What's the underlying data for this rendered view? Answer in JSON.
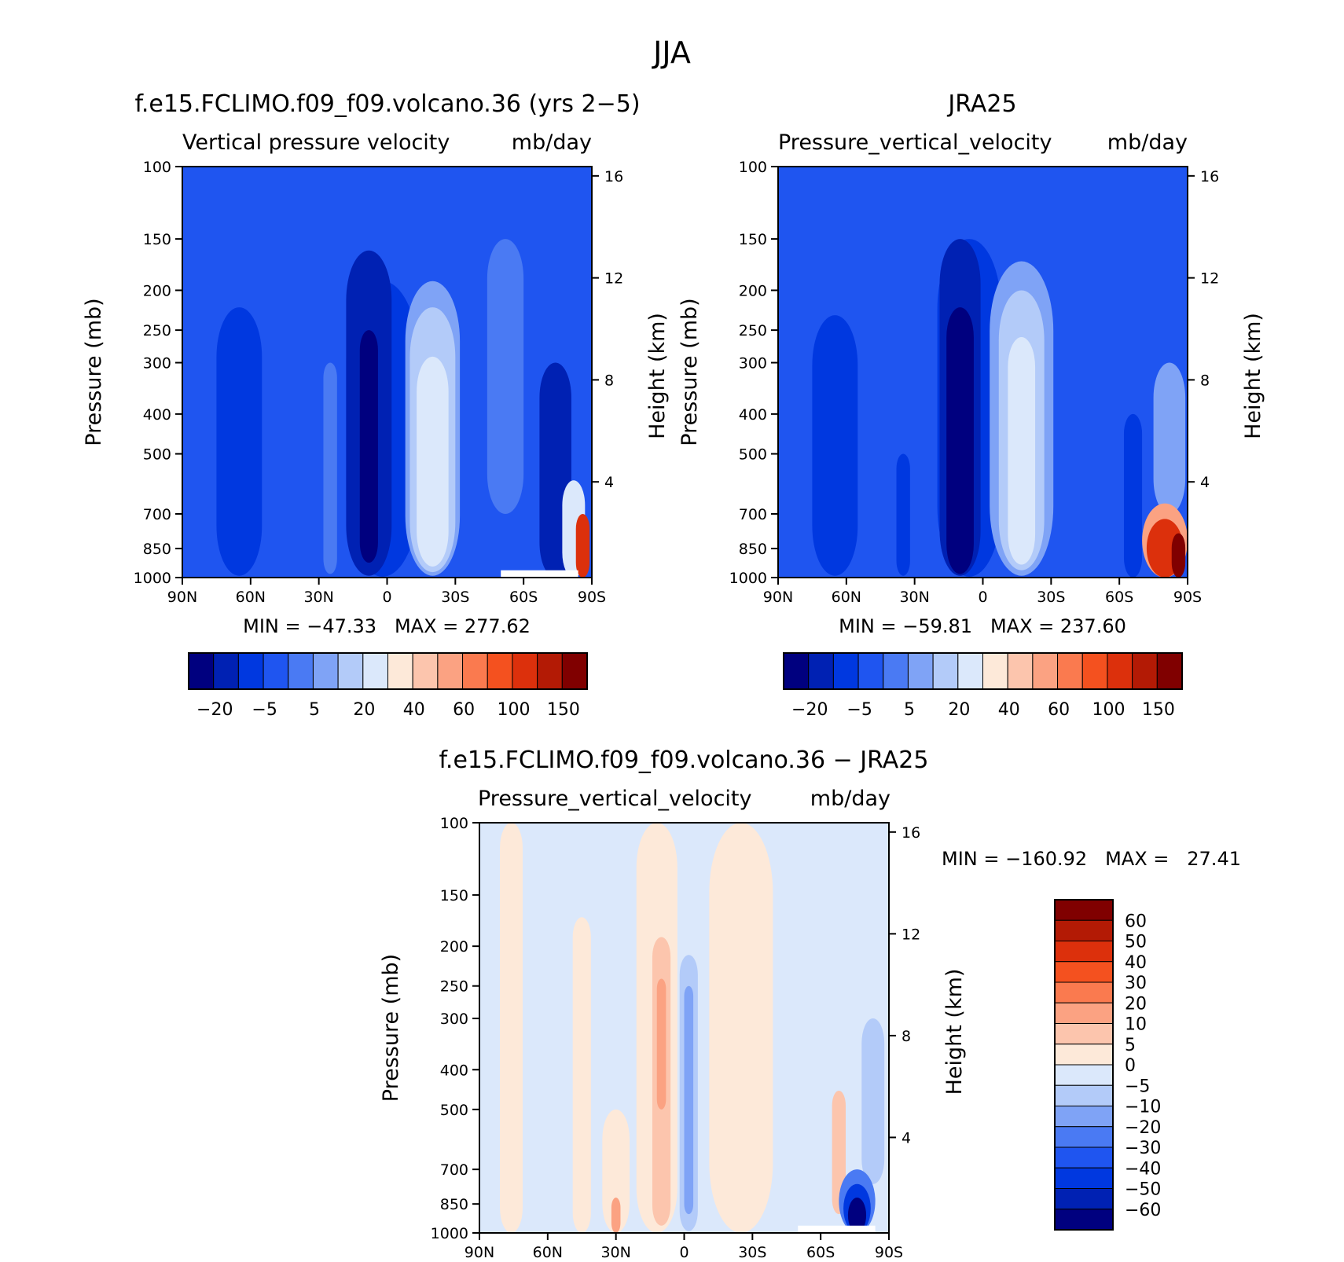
{
  "figure": {
    "season_title": "JJA"
  },
  "panels": [
    {
      "id": "model",
      "title": "f.e15.FCLIMO.f09_f09.volcano.36 (yrs 2−5)",
      "var_left": "Vertical pressure velocity",
      "var_right": "mb/day",
      "stats": "MIN = −47.33   MAX = 277.62"
    },
    {
      "id": "obs",
      "title": "JRA25",
      "var_left": "Pressure_vertical_velocity",
      "var_right": "mb/day",
      "stats": "MIN = −59.81   MAX = 237.60"
    },
    {
      "id": "diff",
      "title": "f.e15.FCLIMO.f09_f09.volcano.36 − JRA25",
      "var_left": "Pressure_vertical_velocity",
      "var_right": "mb/day",
      "stats": "MIN = −160.92   MAX =   27.41"
    }
  ],
  "chart_data": {
    "type": "heatmap",
    "x_ticks": [
      "90N",
      "60N",
      "30N",
      "0",
      "30S",
      "60S",
      "90S"
    ],
    "x_values": [
      90,
      60,
      30,
      0,
      -30,
      -60,
      -90
    ],
    "y_ticks": [
      "100",
      "150",
      "200",
      "250",
      "300",
      "400",
      "500",
      "700",
      "850",
      "1000"
    ],
    "y_values": [
      100,
      150,
      200,
      250,
      300,
      400,
      500,
      700,
      850,
      1000
    ],
    "y_scale": "log",
    "ylim": [
      1000,
      100
    ],
    "ylabel": "Pressure (mb)",
    "ylabel_right": "Height (km)",
    "height_ticks": [
      "16",
      "12",
      "8",
      "4"
    ],
    "height_values": [
      16,
      12,
      8,
      4
    ],
    "colorbar_main": {
      "orientation": "horizontal",
      "labels": [
        "−20",
        "−5",
        "5",
        "20",
        "40",
        "60",
        "100",
        "150"
      ],
      "colors": [
        "#00007f",
        "#0021b3",
        "#0038e0",
        "#1f55f0",
        "#4a7af3",
        "#7fa3f6",
        "#b3cbf9",
        "#dbe8fb",
        "#fde9d9",
        "#fcc5ad",
        "#fba282",
        "#fa7a4f",
        "#f4511f",
        "#dc300c",
        "#b31a05",
        "#800000"
      ]
    },
    "colorbar_diff": {
      "orientation": "vertical",
      "labels": [
        "60",
        "50",
        "40",
        "30",
        "20",
        "10",
        "5",
        "0",
        "−5",
        "−10",
        "−20",
        "−30",
        "−40",
        "−50",
        "−60"
      ],
      "colors": [
        "#800000",
        "#b31a05",
        "#dc300c",
        "#f4511f",
        "#fa7a4f",
        "#fba282",
        "#fcc5ad",
        "#fde9d9",
        "#dbe8fb",
        "#b3cbf9",
        "#7fa3f6",
        "#4a7af3",
        "#1f55f0",
        "#0038e0",
        "#0021b3",
        "#00007f"
      ]
    },
    "fields": {
      "model": {
        "background": "#1f55f0",
        "features": [
          {
            "lat": 65,
            "lat_w": 10,
            "p_top": 220,
            "p_bot": 990,
            "color": "#0038e0"
          },
          {
            "lat": 25,
            "lat_w": 3,
            "p_top": 300,
            "p_bot": 980,
            "color": "#4a7af3"
          },
          {
            "lat": 2,
            "lat_w": 16,
            "p_top": 190,
            "p_bot": 995,
            "color": "#0038e0"
          },
          {
            "lat": 8,
            "lat_w": 10,
            "p_top": 160,
            "p_bot": 990,
            "color": "#0021b3"
          },
          {
            "lat": 8,
            "lat_w": 4,
            "p_top": 250,
            "p_bot": 920,
            "color": "#00007f"
          },
          {
            "lat": -20,
            "lat_w": 12,
            "p_top": 190,
            "p_bot": 990,
            "color": "#7fa3f6"
          },
          {
            "lat": -20,
            "lat_w": 10,
            "p_top": 220,
            "p_bot": 970,
            "color": "#b3cbf9"
          },
          {
            "lat": -20,
            "lat_w": 7,
            "p_top": 290,
            "p_bot": 940,
            "color": "#dbe8fb"
          },
          {
            "lat": -52,
            "lat_w": 8,
            "p_top": 150,
            "p_bot": 700,
            "color": "#4a7af3"
          },
          {
            "lat": -74,
            "lat_w": 7,
            "p_top": 300,
            "p_bot": 1000,
            "color": "#0021b3"
          },
          {
            "lat": -82,
            "lat_w": 5,
            "p_top": 580,
            "p_bot": 1000,
            "color": "#dbe8fb"
          },
          {
            "lat": -86,
            "lat_w": 3,
            "p_top": 700,
            "p_bot": 1000,
            "color": "#dc300c"
          }
        ]
      },
      "obs": {
        "background": "#1f55f0",
        "features": [
          {
            "lat": 65,
            "lat_w": 10,
            "p_top": 230,
            "p_bot": 990,
            "color": "#0038e0"
          },
          {
            "lat": 35,
            "lat_w": 3,
            "p_top": 500,
            "p_bot": 990,
            "color": "#0038e0"
          },
          {
            "lat": 6,
            "lat_w": 14,
            "p_top": 150,
            "p_bot": 995,
            "color": "#0038e0"
          },
          {
            "lat": 10,
            "lat_w": 9,
            "p_top": 150,
            "p_bot": 990,
            "color": "#0021b3"
          },
          {
            "lat": 10,
            "lat_w": 6,
            "p_top": 220,
            "p_bot": 980,
            "color": "#00007f"
          },
          {
            "lat": -17,
            "lat_w": 14,
            "p_top": 170,
            "p_bot": 990,
            "color": "#7fa3f6"
          },
          {
            "lat": -17,
            "lat_w": 10,
            "p_top": 200,
            "p_bot": 960,
            "color": "#b3cbf9"
          },
          {
            "lat": -17,
            "lat_w": 6,
            "p_top": 260,
            "p_bot": 930,
            "color": "#dbe8fb"
          },
          {
            "lat": -66,
            "lat_w": 4,
            "p_top": 400,
            "p_bot": 1000,
            "color": "#0038e0"
          },
          {
            "lat": -82,
            "lat_w": 7,
            "p_top": 300,
            "p_bot": 700,
            "color": "#7fa3f6"
          },
          {
            "lat": -80,
            "lat_w": 10,
            "p_top": 660,
            "p_bot": 1000,
            "color": "#fba282"
          },
          {
            "lat": -80,
            "lat_w": 8,
            "p_top": 720,
            "p_bot": 1000,
            "color": "#dc300c"
          },
          {
            "lat": -86,
            "lat_w": 3,
            "p_top": 780,
            "p_bot": 1000,
            "color": "#800000"
          }
        ]
      },
      "diff": {
        "background": "#dbe8fb",
        "features": [
          {
            "lat": 76,
            "lat_w": 5,
            "p_top": 100,
            "p_bot": 1000,
            "color": "#fde9d9"
          },
          {
            "lat": 45,
            "lat_w": 4,
            "p_top": 170,
            "p_bot": 1000,
            "color": "#fde9d9"
          },
          {
            "lat": 30,
            "lat_w": 6,
            "p_top": 500,
            "p_bot": 1000,
            "color": "#fde9d9"
          },
          {
            "lat": 12,
            "lat_w": 9,
            "p_top": 100,
            "p_bot": 1000,
            "color": "#fde9d9"
          },
          {
            "lat": 10,
            "lat_w": 4,
            "p_top": 190,
            "p_bot": 960,
            "color": "#fcc5ad"
          },
          {
            "lat": 10,
            "lat_w": 2,
            "p_top": 240,
            "p_bot": 500,
            "color": "#fba282"
          },
          {
            "lat": 30,
            "lat_w": 2,
            "p_top": 820,
            "p_bot": 1000,
            "color": "#fba282"
          },
          {
            "lat": -2,
            "lat_w": 4,
            "p_top": 210,
            "p_bot": 990,
            "color": "#b3cbf9"
          },
          {
            "lat": -2,
            "lat_w": 2,
            "p_top": 250,
            "p_bot": 900,
            "color": "#7fa3f6"
          },
          {
            "lat": -25,
            "lat_w": 14,
            "p_top": 100,
            "p_bot": 1000,
            "color": "#fde9d9"
          },
          {
            "lat": -68,
            "lat_w": 3,
            "p_top": 450,
            "p_bot": 900,
            "color": "#fcc5ad"
          },
          {
            "lat": -83,
            "lat_w": 5,
            "p_top": 300,
            "p_bot": 760,
            "color": "#b3cbf9"
          },
          {
            "lat": -76,
            "lat_w": 8,
            "p_top": 700,
            "p_bot": 1000,
            "color": "#4a7af3"
          },
          {
            "lat": -76,
            "lat_w": 6,
            "p_top": 760,
            "p_bot": 1000,
            "color": "#0038e0"
          },
          {
            "lat": -76,
            "lat_w": 4,
            "p_top": 820,
            "p_bot": 1000,
            "color": "#00007f"
          }
        ]
      }
    }
  }
}
